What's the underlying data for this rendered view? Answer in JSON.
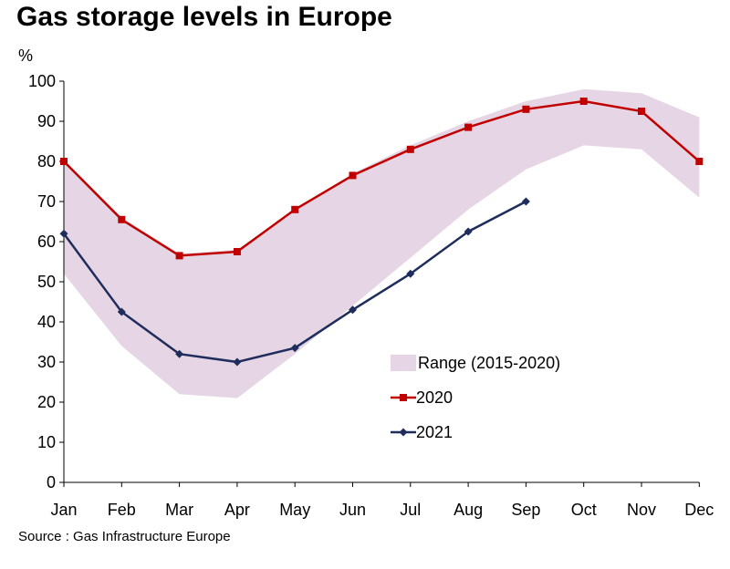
{
  "chart_data": {
    "type": "line",
    "title": "Gas storage levels in Europe",
    "ylabel": "%",
    "xlabel": "",
    "source": "Source : Gas Infrastructure Europe",
    "categories": [
      "Jan",
      "Feb",
      "Mar",
      "Apr",
      "May",
      "Jun",
      "Jul",
      "Aug",
      "Sep",
      "Oct",
      "Nov",
      "Dec"
    ],
    "ylim": [
      0,
      100
    ],
    "yticks": [
      0,
      10,
      20,
      30,
      40,
      50,
      60,
      70,
      80,
      90,
      100
    ],
    "grid": false,
    "legend_position": "bottom-right",
    "range": {
      "name": "Range (2015-2020)",
      "color": "#e6d5e4",
      "low": [
        52,
        34,
        22,
        21,
        32,
        44,
        56,
        68,
        78,
        84,
        83,
        71
      ],
      "high": [
        80,
        66,
        57,
        58,
        68,
        77,
        84,
        90,
        95,
        98,
        97,
        91
      ]
    },
    "series": [
      {
        "name": "2020",
        "color": "#c00000",
        "marker": "square",
        "values": [
          80,
          65.5,
          56.5,
          57.5,
          68,
          76.5,
          83,
          88.5,
          93,
          95,
          92.5,
          80
        ]
      },
      {
        "name": "2021",
        "color": "#1f2d5c",
        "marker": "diamond",
        "values": [
          62,
          42.5,
          32,
          30,
          33.5,
          43,
          52,
          62.5,
          70,
          null,
          null,
          null
        ]
      }
    ]
  }
}
